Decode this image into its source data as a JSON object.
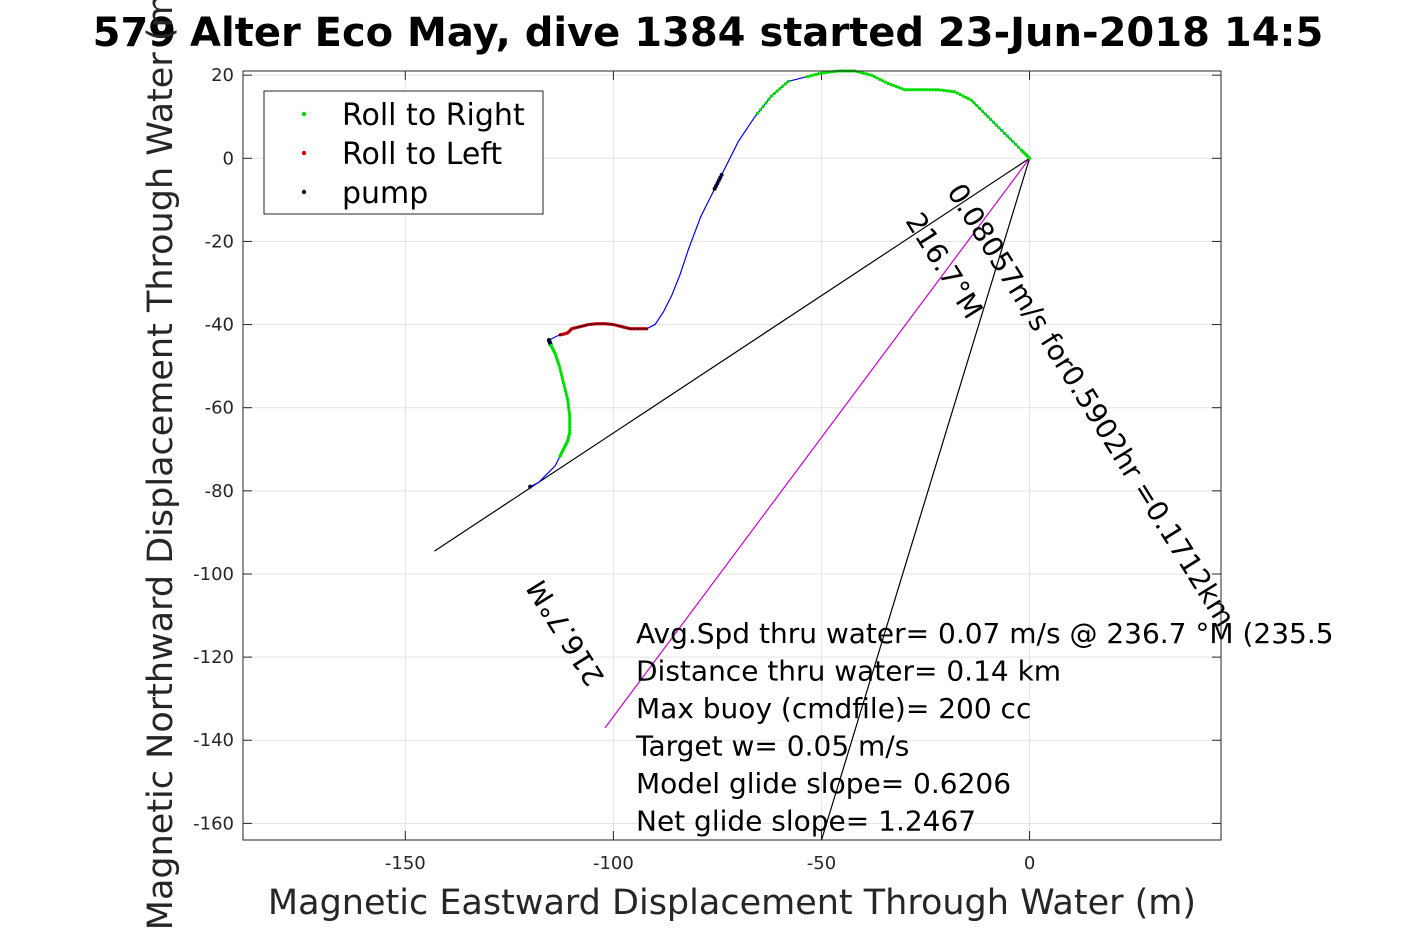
{
  "chart_data": {
    "type": "line",
    "title": "579 Alter Eco May, dive 1384 started 23-Jun-2018 14:5",
    "xlabel": "Magnetic Eastward Displacement Through Water (m)",
    "ylabel": "Magnetic Northward Displacement Through Water (m)",
    "xlim": [
      -189,
      46
    ],
    "ylim": [
      -164,
      21
    ],
    "grid": true,
    "x_ticks": [
      -150,
      -100,
      -50,
      0
    ],
    "y_ticks": [
      20,
      0,
      -20,
      -40,
      -60,
      -80,
      -100,
      -120,
      -140,
      -160
    ],
    "legend": {
      "placement": "top-left",
      "entries": [
        {
          "label": "Roll to Right",
          "color": "#00dd00",
          "marker": "dot"
        },
        {
          "label": "Roll to Left",
          "color": "#dd0000",
          "marker": "dot"
        },
        {
          "label": "pump",
          "color": "#000000",
          "marker": "dot"
        }
      ]
    },
    "series": [
      {
        "name": "track",
        "color": "#0000ff",
        "x": [
          0,
          -2,
          -6,
          -10,
          -14,
          -18,
          -22,
          -26,
          -30,
          -34,
          -38,
          -42,
          -46,
          -50,
          -54,
          -58,
          -62,
          -66,
          -70,
          -74,
          -76,
          -79,
          -82,
          -84,
          -86,
          -88,
          -90,
          -92,
          -94,
          -96,
          -98,
          -100,
          -102,
          -104,
          -106,
          -108,
          -110,
          -111,
          -112,
          -113,
          -114,
          -115,
          -115.5,
          -115,
          -114,
          -113,
          -112,
          -111,
          -110.5,
          -110.5,
          -111,
          -112,
          -113,
          -114,
          -116,
          -118,
          -120
        ],
        "y": [
          0,
          2,
          6,
          10,
          14,
          16,
          16.5,
          16.5,
          16.5,
          18,
          20,
          21,
          21,
          20.5,
          19.5,
          18.5,
          15,
          10,
          4,
          -4,
          -8,
          -14,
          -22,
          -28,
          -33,
          -37,
          -40,
          -41,
          -41,
          -41,
          -40.5,
          -40,
          -39.8,
          -39.8,
          -40,
          -40.5,
          -41,
          -42,
          -42.3,
          -42.5,
          -43,
          -43.5,
          -43.7,
          -45,
          -47,
          -50,
          -54,
          -58,
          -62,
          -66,
          -68,
          -70,
          -72,
          -74,
          -76,
          -78,
          -79
        ]
      }
    ],
    "marker_segments": [
      {
        "kind": "right",
        "from": 0,
        "to": 14
      },
      {
        "kind": "right",
        "from": 15,
        "to": 17
      },
      {
        "kind": "pump",
        "from": 19,
        "to": 20
      },
      {
        "kind": "left",
        "from": 27,
        "to": 39
      },
      {
        "kind": "pump",
        "from": 42,
        "to": 43
      },
      {
        "kind": "right",
        "from": 43,
        "to": 52
      },
      {
        "kind": "pump",
        "from": 56,
        "to": 56
      }
    ],
    "lines": [
      {
        "name": "current",
        "color": "#000000",
        "x": [
          0,
          -143
        ],
        "y": [
          0,
          -94.5
        ]
      },
      {
        "name": "heading",
        "color": "#cc00cc",
        "x": [
          0,
          -102
        ],
        "y": [
          0,
          -137
        ]
      },
      {
        "name": "model",
        "color": "#000000",
        "x": [
          0,
          -50
        ],
        "y": [
          0,
          -164
        ]
      }
    ],
    "annotations": [
      {
        "text": "0.08057m/s for0.5902hr =0.1712km",
        "color": "#000000",
        "x": -20,
        "y": -8,
        "rotate": 58
      },
      {
        "text": "216.7°M",
        "color": "#000000",
        "x": -30,
        "y": -15,
        "rotate": 58
      },
      {
        "text": "216.7°M",
        "color": "#000000",
        "x": -102,
        "y": -125,
        "rotate": -122
      }
    ],
    "info_text": [
      "Avg.Spd thru water=  0.07 m/s @ 236.7 °M (235.5",
      "Distance thru water=  0.14 km",
      "Max buoy (cmdfile)= 200 cc",
      "Target w= 0.05 m/s",
      "Model glide slope= 0.6206",
      "Net glide slope= 1.2467"
    ]
  }
}
